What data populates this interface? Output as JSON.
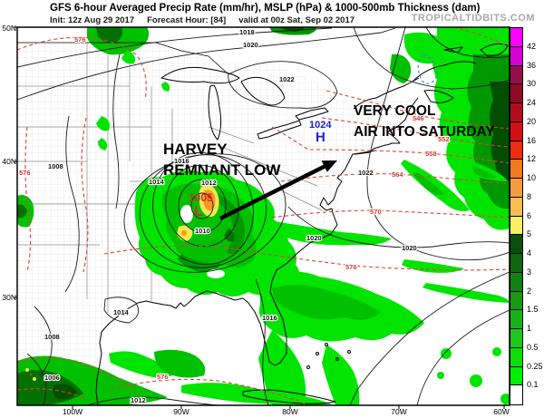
{
  "header": {
    "title": "GFS 6-hour Averaged Precip Rate (mm/hr), MSLP (hPa) & 1000-500mb Thickness (dam)",
    "init": "Init: 12z Aug 29 2017",
    "fhr": "Forecast Hour: [84]",
    "valid": "valid at 00z Sat, Sep 02 2017",
    "watermark": "TROPICALTIDBITS.COM"
  },
  "axes": {
    "lat": [
      "50N",
      "40N",
      "30N"
    ],
    "lon": [
      "100W",
      "90W",
      "80W",
      "70W",
      "60W"
    ]
  },
  "map": {
    "annotations": {
      "harvey1": "HARVEY",
      "harvey2": "REMNANT LOW",
      "cool1": "VERY COOL",
      "cool2": "AIR INTO SATURDAY",
      "low_value": "1005",
      "low_symbol": "L",
      "high_value": "1024",
      "high_symbol": "H"
    },
    "isobar_labels": [
      "1018",
      "1020",
      "1022",
      "1016",
      "1014",
      "1012",
      "1010",
      "1008",
      "1022",
      "1020",
      "1020",
      "1016",
      "1014",
      "1012",
      "1008",
      "1006"
    ],
    "thickness_labels": [
      "576",
      "576",
      "546",
      "552",
      "558",
      "564",
      "570",
      "576",
      "576"
    ]
  },
  "colorbar": {
    "values": [
      "42",
      "36",
      "30",
      "24",
      "20",
      "16",
      "12",
      "10",
      "8",
      "6",
      "5",
      "4",
      "3",
      "2",
      "1.5",
      "1",
      "0.5",
      "0.25",
      "0.1"
    ],
    "colors": [
      "#fb02fb",
      "#d400d4",
      "#960f4c",
      "#8f0b25",
      "#b20b1e",
      "#d50f15",
      "#ee2b14",
      "#f2791f",
      "#f49d3f",
      "#f6be53",
      "#f8ef63",
      "#0b4f0b",
      "#0e660e",
      "#128012",
      "#169a16",
      "#19b119",
      "#1cc81c",
      "#0cdc0c",
      "#01ef01",
      "#ffffff"
    ]
  }
}
